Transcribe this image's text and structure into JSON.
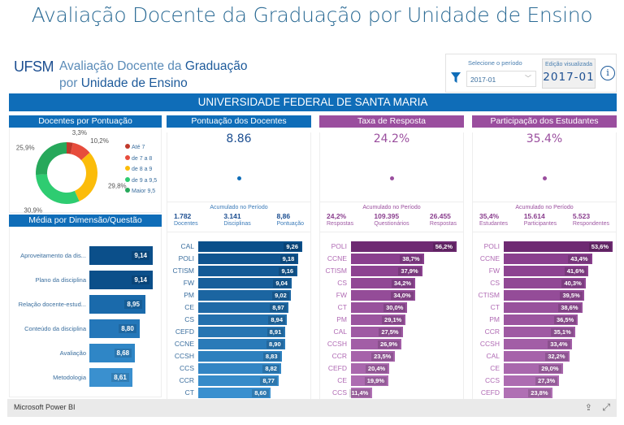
{
  "page_title": "Avaliação Docente da Graduação por Unidade de Ensino",
  "header": {
    "logo": "UFSM",
    "title_line1_light": "Avaliação Docente da ",
    "title_line1_bold": "Graduação",
    "title_line2_light": "por ",
    "title_line2_bold": "Unidade de Ensino",
    "period_label": "Selecione o período",
    "period_value": "2017-01",
    "edition_label": "Edição visualizada",
    "edition_value": "2017-01",
    "info_icon": "i"
  },
  "banner": "UNIVERSIDADE FEDERAL DE SANTA MARIA",
  "colors": {
    "blue": "#0f6db8",
    "purple": "#9a4e9e",
    "dark_blue_text": "#1d4f91",
    "purple_text": "#9a4e9e"
  },
  "docentes_pontuacao": {
    "title": "Docentes por Pontuação",
    "chart_data": {
      "type": "pie",
      "title": "Docentes por Pontuação",
      "legend_position": "right",
      "slices": [
        {
          "label": "Até 7",
          "value": 3.3,
          "display": "3,3%",
          "color": "#c0392b"
        },
        {
          "label": "de 7 a 8",
          "value": 10.2,
          "display": "10,2%",
          "color": "#e74c3c"
        },
        {
          "label": "de 8 a 9",
          "value": 29.8,
          "display": "29,8%",
          "color": "#fbbc0a"
        },
        {
          "label": "de 9 a 9,5",
          "value": 30.9,
          "display": "30,9%",
          "color": "#2ecc71"
        },
        {
          "label": "Maior 9,5",
          "value": 25.9,
          "display": "25,9%",
          "color": "#27a85b"
        }
      ]
    }
  },
  "media_dimensao": {
    "title": "Média por Dimensão/Questão",
    "chart_data": {
      "type": "bar",
      "orientation": "horizontal",
      "categories": [
        "Aproveitamento da dis...",
        "Plano da disciplina",
        "Relação docente-estud...",
        "Conteúdo da disciplina",
        "Avaliação",
        "Metodologia"
      ],
      "values": [
        9.14,
        9.14,
        8.95,
        8.8,
        8.68,
        8.61
      ],
      "labels": [
        "9,14",
        "9,14",
        "8,95",
        "8,80",
        "8,68",
        "8,61"
      ],
      "colors": [
        "#0b4f8a",
        "#0b4f8a",
        "#1a6aab",
        "#2477b9",
        "#2f86c6",
        "#3a90cf"
      ]
    }
  },
  "pontuacao": {
    "title": "Pontuação dos Docentes",
    "kpi": "8.86",
    "accum_title": "Acumulado no Período",
    "stats": [
      {
        "value": "1.782",
        "caption": "Docentes"
      },
      {
        "value": "3.141",
        "caption": "Disciplinas"
      },
      {
        "value": "8,86",
        "caption": "Pontuação"
      }
    ],
    "chart_data": {
      "type": "bar",
      "orientation": "horizontal",
      "categories": [
        "CAL",
        "POLI",
        "CTISM",
        "FW",
        "PM",
        "CE",
        "CS",
        "CEFD",
        "CCNE",
        "CCSH",
        "CCS",
        "CCR",
        "CT"
      ],
      "values": [
        9.26,
        9.18,
        9.16,
        9.04,
        9.02,
        8.97,
        8.94,
        8.91,
        8.9,
        8.83,
        8.82,
        8.77,
        8.6
      ],
      "labels": [
        "9,26",
        "9,18",
        "9,16",
        "9,04",
        "9,02",
        "8,97",
        "8,94",
        "8,91",
        "8,90",
        "8,83",
        "8,82",
        "8,77",
        "8,60"
      ],
      "xlim": [
        0,
        9.26
      ]
    }
  },
  "taxa_resposta": {
    "title": "Taxa de Resposta",
    "kpi": "24.2%",
    "accum_title": "Acumulado no Período",
    "stats": [
      {
        "value": "24,2%",
        "caption": "Respostas"
      },
      {
        "value": "109.395",
        "caption": "Questionários"
      },
      {
        "value": "26.455",
        "caption": "Respostas"
      }
    ],
    "chart_data": {
      "type": "bar",
      "orientation": "horizontal",
      "categories": [
        "POLI",
        "CCNE",
        "CTISM",
        "CS",
        "FW",
        "CT",
        "PM",
        "CAL",
        "CCSH",
        "CCR",
        "CEFD",
        "CE",
        "CCS"
      ],
      "values": [
        56.2,
        38.7,
        37.9,
        34.2,
        34.0,
        30.0,
        29.1,
        27.5,
        26.9,
        23.5,
        20.4,
        19.9,
        11.4
      ],
      "labels": [
        "56,2%",
        "38,7%",
        "37,9%",
        "34,2%",
        "34,0%",
        "30,0%",
        "29,1%",
        "27,5%",
        "26,9%",
        "23,5%",
        "20,4%",
        "19,9%",
        "11,4%"
      ],
      "xlim": [
        0,
        56.2
      ]
    }
  },
  "participacao": {
    "title": "Participação dos Estudantes",
    "kpi": "35.4%",
    "accum_title": "Acumulado no Período",
    "stats": [
      {
        "value": "35,4%",
        "caption": "Estudantes"
      },
      {
        "value": "15.614",
        "caption": "Participantes"
      },
      {
        "value": "5.523",
        "caption": "Respondentes"
      }
    ],
    "chart_data": {
      "type": "bar",
      "orientation": "horizontal",
      "categories": [
        "POLI",
        "CCNE",
        "FW",
        "CS",
        "CTISM",
        "CT",
        "PM",
        "CCR",
        "CCSH",
        "CAL",
        "CE",
        "CCS",
        "CEFD"
      ],
      "values": [
        53.6,
        43.4,
        41.6,
        40.3,
        39.5,
        38.6,
        36.5,
        35.1,
        33.4,
        32.2,
        29.0,
        27.3,
        23.8
      ],
      "labels": [
        "53,6%",
        "43,4%",
        "41,6%",
        "40,3%",
        "39,5%",
        "38,6%",
        "36,5%",
        "35,1%",
        "33,4%",
        "32,2%",
        "29,0%",
        "27,3%",
        "23,8%"
      ],
      "xlim": [
        0,
        53.6
      ]
    }
  },
  "footer": {
    "brand": "Microsoft Power BI",
    "share_icon": "⇪",
    "expand_icon": "⤢"
  }
}
